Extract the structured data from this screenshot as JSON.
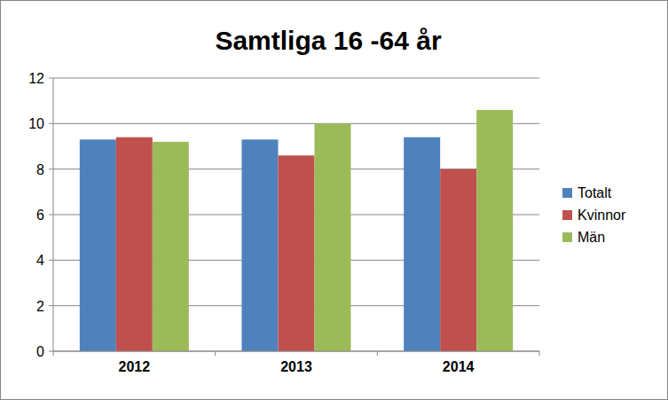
{
  "chart_data": {
    "type": "bar",
    "title": "Samtliga 16 -64 år",
    "categories": [
      "2012",
      "2013",
      "2014"
    ],
    "series": [
      {
        "name": "Totalt",
        "color": "#4f81bd",
        "values": [
          9.3,
          9.3,
          9.4
        ]
      },
      {
        "name": "Kvinnor",
        "color": "#c0504d",
        "values": [
          9.4,
          8.6,
          8.0
        ]
      },
      {
        "name": "Män",
        "color": "#9bbb59",
        "values": [
          9.2,
          10.0,
          10.6
        ]
      }
    ],
    "ylim": [
      0,
      12
    ],
    "yticks": [
      0,
      2,
      4,
      6,
      8,
      10,
      12
    ],
    "grid": true,
    "legend": "right"
  }
}
